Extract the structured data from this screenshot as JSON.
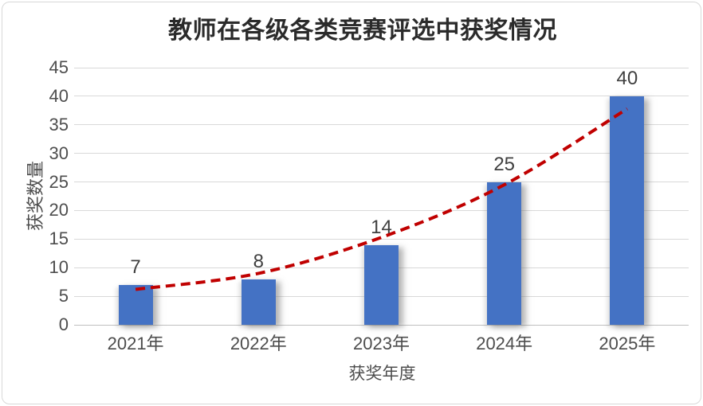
{
  "chart_data": {
    "type": "bar",
    "title": "教师在各级各类竞赛评选中获奖情况",
    "categories": [
      "2021年",
      "2022年",
      "2023年",
      "2024年",
      "2025年"
    ],
    "values": [
      7,
      8,
      14,
      25,
      40
    ],
    "data_labels": [
      "7",
      "8",
      "14",
      "25",
      "40"
    ],
    "xlabel": "获奖年度",
    "ylabel": "获奖数量",
    "ylim": [
      0,
      45
    ],
    "ytick_step": 5,
    "yticks": [
      0,
      5,
      10,
      15,
      20,
      25,
      30,
      35,
      40,
      45
    ],
    "grid": true,
    "legend": "none",
    "colors": {
      "bar": "#4472c4",
      "trendline": "#c00000",
      "gridline": "#d9d9d9",
      "axis_line": "#bfbfbf",
      "axis_text": "#4d4d4d",
      "data_label_text": "#404040",
      "title_text": "#2b2b2b",
      "background": "#ffffff",
      "frame_border": "#d8d8d8"
    },
    "trendline": {
      "style": "dashed",
      "color": "#c00000",
      "values_at_categories": [
        6.2,
        9.0,
        15.3,
        24.5,
        37.8
      ]
    }
  }
}
